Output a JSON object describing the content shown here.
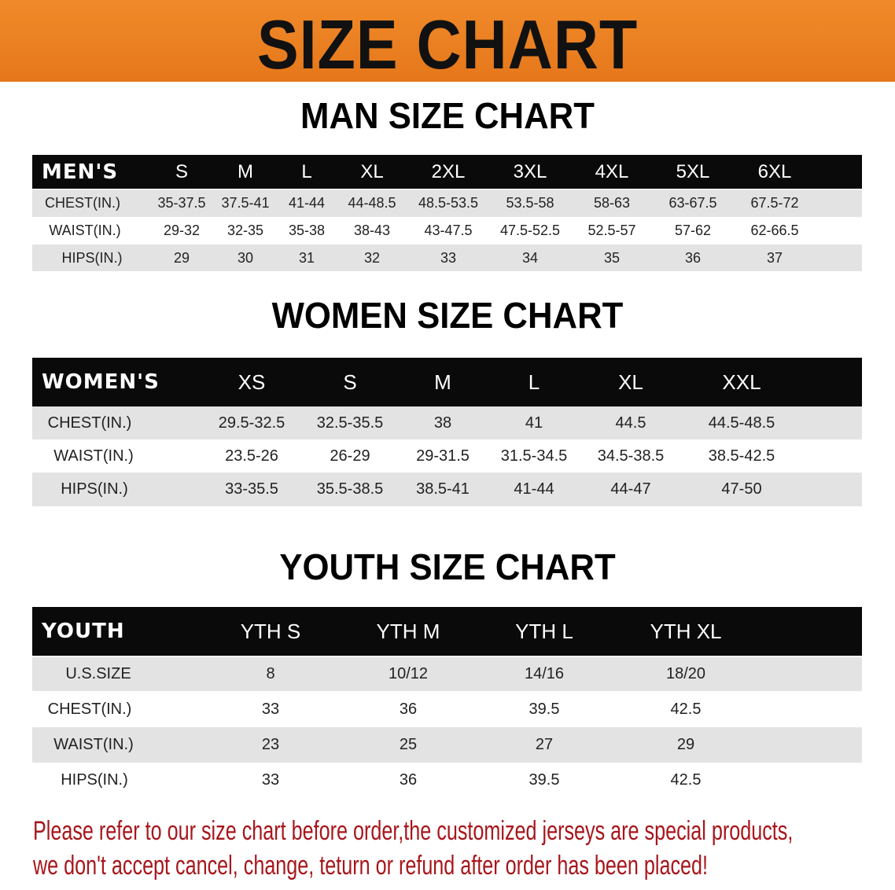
{
  "title": "SIZE CHART",
  "men": {
    "title": "MAN SIZE CHART",
    "header": [
      "MEN'S",
      "S",
      "M",
      "L",
      "XL",
      "2XL",
      "3XL",
      "4XL",
      "5XL",
      "6XL"
    ],
    "rows": [
      [
        "CHEST(IN.)",
        "35-37.5",
        "37.5-41",
        "41-44",
        "44-48.5",
        "48.5-53.5",
        "53.5-58",
        "58-63",
        "63-67.5",
        "67.5-72"
      ],
      [
        "WAIST(IN.)",
        "29-32",
        "32-35",
        "35-38",
        "38-43",
        "43-47.5",
        "47.5-52.5",
        "52.5-57",
        "57-62",
        "62-66.5"
      ],
      [
        "HIPS(IN.)",
        "29",
        "30",
        "31",
        "32",
        "33",
        "34",
        "35",
        "36",
        "37"
      ]
    ]
  },
  "women": {
    "title": "WOMEN SIZE CHART",
    "header": [
      "WOMEN'S",
      "XS",
      "S",
      "M",
      "L",
      "XL",
      "XXL"
    ],
    "rows": [
      [
        "CHEST(IN.)",
        "29.5-32.5",
        "32.5-35.5",
        "38",
        "41",
        "44.5",
        "44.5-48.5"
      ],
      [
        "WAIST(IN.)",
        "23.5-26",
        "26-29",
        "29-31.5",
        "31.5-34.5",
        "34.5-38.5",
        "38.5-42.5"
      ],
      [
        "HIPS(IN.)",
        "33-35.5",
        "35.5-38.5",
        "38.5-41",
        "41-44",
        "44-47",
        "47-50"
      ]
    ]
  },
  "youth": {
    "title": "YOUTH SIZE CHART",
    "header": [
      "YOUTH",
      "YTH S",
      "YTH M",
      "YTH L",
      "YTH XL"
    ],
    "rows": [
      [
        "U.S.SIZE",
        "8",
        "10/12",
        "14/16",
        "18/20"
      ],
      [
        "CHEST(IN.)",
        "33",
        "36",
        "39.5",
        "42.5"
      ],
      [
        "WAIST(IN.)",
        "23",
        "25",
        "27",
        "29"
      ],
      [
        "HIPS(IN.)",
        "33",
        "36",
        "39.5",
        "42.5"
      ]
    ]
  },
  "notice": [
    "Please refer to our size chart before order,the customized jerseys are special products,",
    "we don't accept cancel, change, teturn or refund after order has been placed!"
  ],
  "colors": {
    "banner": "#e87d1e",
    "header_row": "#0a0a0a",
    "notice": "#a8161b"
  }
}
